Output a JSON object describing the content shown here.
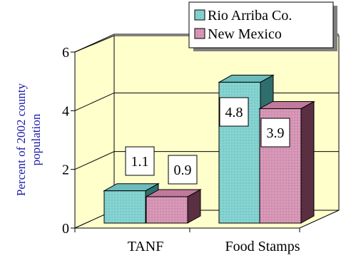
{
  "chart_data": {
    "type": "bar",
    "title": "",
    "xlabel": "",
    "ylabel": "Percent of 2002 county population",
    "ylabel_lines": [
      "Percent of 2002 county",
      "population"
    ],
    "categories": [
      "TANF",
      "Food Stamps"
    ],
    "series": [
      {
        "name": "Rio Arriba Co.",
        "values": [
          1.1,
          4.8
        ],
        "color": "#80d0d0"
      },
      {
        "name": "New Mexico",
        "values": [
          0.9,
          3.9
        ],
        "color": "#d090b0"
      }
    ],
    "data_labels": [
      [
        "1.1",
        "4.8"
      ],
      [
        "0.9",
        "3.9"
      ]
    ],
    "yticks": [
      "0",
      "2",
      "4",
      "6"
    ],
    "ylim": [
      0,
      6
    ],
    "grid": true,
    "legend": "top-right",
    "style": "3d-clustered-bar"
  }
}
